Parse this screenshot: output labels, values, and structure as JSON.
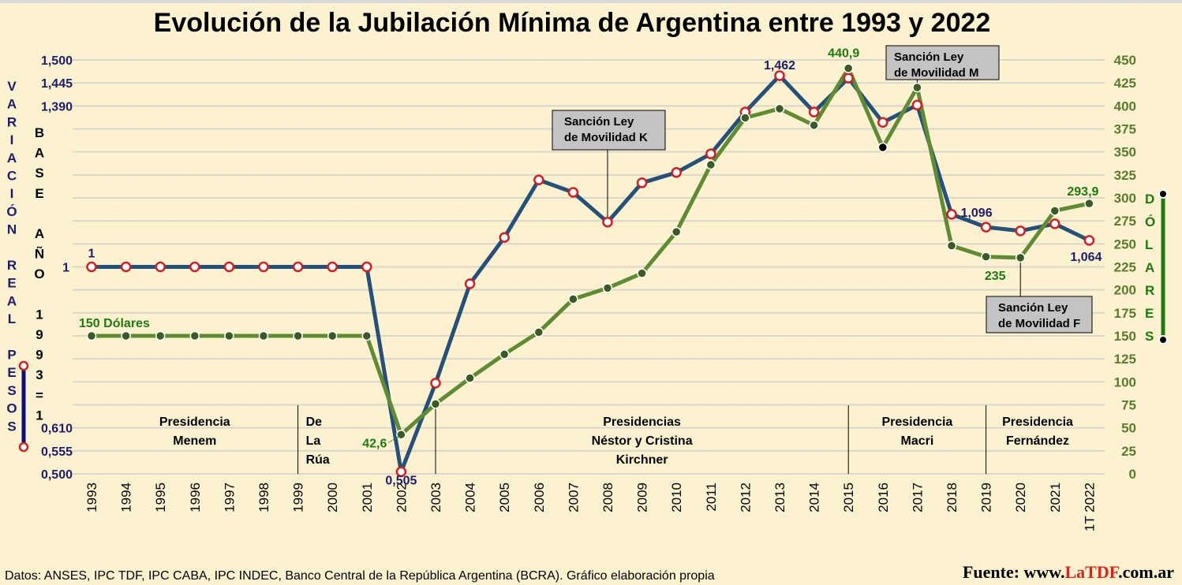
{
  "chart_data": {
    "type": "line",
    "title": "Evolución de la Jubilación Mínima de Argentina entre 1993 y 2022",
    "categories": [
      "1993",
      "1994",
      "1995",
      "1996",
      "1997",
      "1998",
      "1999",
      "2000",
      "2001",
      "2002",
      "2003",
      "2004",
      "2005",
      "2006",
      "2007",
      "2008",
      "2009",
      "2010",
      "2011",
      "2012",
      "2013",
      "2014",
      "2015",
      "2016",
      "2017",
      "2018",
      "2019",
      "2020",
      "2021",
      "1T 2022"
    ],
    "series": [
      {
        "name": "Variación real pesos (base año 1993 = 1)",
        "axis": "left",
        "color": "#24507a",
        "marker": "hollow-red",
        "values": [
          1,
          1,
          1,
          1,
          1,
          1,
          1,
          1,
          1,
          0.505,
          0.719,
          0.959,
          1.071,
          1.21,
          1.18,
          1.108,
          1.203,
          1.228,
          1.273,
          1.374,
          1.462,
          1.374,
          1.456,
          1.349,
          1.391,
          1.127,
          1.096,
          1.087,
          1.104,
          1.064
        ]
      },
      {
        "name": "Dólares",
        "axis": "right",
        "color": "#5f8b35",
        "marker": "dark-dot",
        "values": [
          150,
          150,
          150,
          150,
          150,
          150,
          150,
          150,
          150,
          42.6,
          76,
          104,
          130,
          154,
          190,
          202,
          218,
          263,
          336,
          387,
          397,
          379,
          440.9,
          355,
          420,
          248,
          236,
          235,
          286,
          293.9
        ]
      }
    ],
    "left_axis": {
      "title_outer": [
        "V",
        "A",
        "R",
        "I",
        "A",
        "C",
        "I",
        "Ó",
        "N",
        "",
        "R",
        "E",
        "A",
        "L",
        "",
        "P",
        "E",
        "S",
        "O",
        "S"
      ],
      "title_inner": [
        "B",
        "A",
        "S",
        "E",
        "",
        "A",
        "Ñ",
        "O",
        "",
        "1",
        "9",
        "9",
        "3",
        "=",
        "1"
      ],
      "ticks": [
        {
          "label": "1,500",
          "pos": 450
        },
        {
          "label": "1,445",
          "pos": 425
        },
        {
          "label": "1,390",
          "pos": 400
        },
        {
          "label": "1",
          "pos": 225
        },
        {
          "label": "0,610",
          "pos": 50
        },
        {
          "label": "0,555",
          "pos": 25
        },
        {
          "label": "0,500",
          "pos": 0
        }
      ]
    },
    "right_axis": {
      "title": [
        "D",
        "Ó",
        "L",
        "A",
        "R",
        "E",
        "S"
      ],
      "ylim": [
        0,
        450
      ],
      "ticks": [
        "0",
        "25",
        "50",
        "75",
        "100",
        "125",
        "150",
        "175",
        "200",
        "225",
        "250",
        "275",
        "300",
        "325",
        "350",
        "375",
        "400",
        "425",
        "450"
      ]
    },
    "grid": true,
    "data_labels": [
      {
        "series": 0,
        "index": 0,
        "text": "1"
      },
      {
        "series": 1,
        "index": 0,
        "text": "150 Dólares"
      },
      {
        "series": 0,
        "index": 9,
        "text": "0,505"
      },
      {
        "series": 1,
        "index": 9,
        "text": "42,6"
      },
      {
        "series": 0,
        "index": 20,
        "text": "1,462"
      },
      {
        "series": 1,
        "index": 22,
        "text": "440,9"
      },
      {
        "series": 0,
        "index": 26,
        "text": "1,096"
      },
      {
        "series": 1,
        "index": 27,
        "text": "235"
      },
      {
        "series": 1,
        "index": 29,
        "text": "293,9"
      },
      {
        "series": 0,
        "index": 29,
        "text": "1,064"
      }
    ],
    "annotations": [
      {
        "index": 15,
        "line1": "Sanción Ley",
        "line2": "de Movilidad K"
      },
      {
        "index": 24,
        "line1": "Sanción Ley",
        "line2": "de Movilidad M"
      },
      {
        "index": 27,
        "line1": "Sanción Ley",
        "line2": "de Movilidad F"
      }
    ],
    "periods": [
      {
        "from": 0,
        "to": 6,
        "lines": [
          "Presidencia",
          "Menem"
        ]
      },
      {
        "from": 6,
        "to": 10,
        "lines": [
          "De",
          "La",
          "Rúa"
        ]
      },
      {
        "from": 10,
        "to": 22,
        "lines": [
          "Presidencias",
          "Néstor y Cristina",
          "Kirchner"
        ]
      },
      {
        "from": 22,
        "to": 26,
        "lines": [
          "Presidencia",
          "Macri"
        ]
      },
      {
        "from": 26,
        "to": 29,
        "lines": [
          "Presidencia",
          "Fernández"
        ]
      }
    ]
  },
  "footer": {
    "data_sources": "Datos: ANSES, IPC TDF, IPC CABA, IPC INDEC, Banco Central de la República Argentina (BCRA). Gráfico elaboración propia",
    "source_prefix": "Fuente: www.",
    "source_brand": "LaTDF",
    "source_suffix": ".com.ar",
    "brand_color": "#d9261c"
  }
}
